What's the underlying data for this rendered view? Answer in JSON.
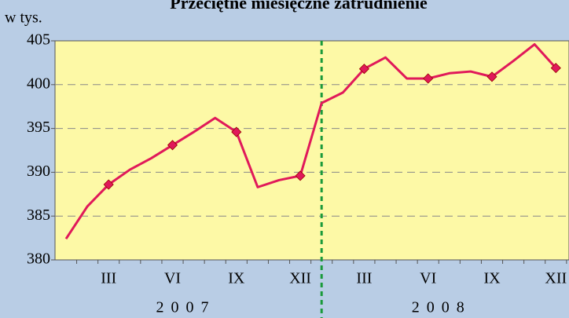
{
  "chart_data": {
    "type": "line",
    "title": "Przeciętne miesięczne zatrudnienie",
    "y_label": "w tys.",
    "categories": [
      null,
      null,
      "III",
      null,
      null,
      "VI",
      null,
      null,
      "IX",
      null,
      null,
      "XII",
      null,
      null,
      "III",
      null,
      null,
      "VI",
      null,
      null,
      "IX",
      null,
      null,
      "XII"
    ],
    "year_labels": [
      "2 0 0 7",
      "2 0 0 8"
    ],
    "series": [
      {
        "name": "zatrudnienie",
        "color": "#e0195a",
        "values": [
          382.4,
          386.1,
          388.6,
          390.3,
          391.6,
          393.1,
          394.6,
          396.2,
          394.6,
          388.3,
          389.1,
          389.6,
          397.9,
          399.1,
          401.8,
          403.1,
          400.7,
          400.7,
          401.3,
          401.5,
          400.9,
          402.7,
          404.6,
          401.9
        ]
      }
    ],
    "ylim": [
      380,
      405
    ],
    "yticks": [
      380,
      385,
      390,
      395,
      400,
      405
    ],
    "grid": true
  }
}
